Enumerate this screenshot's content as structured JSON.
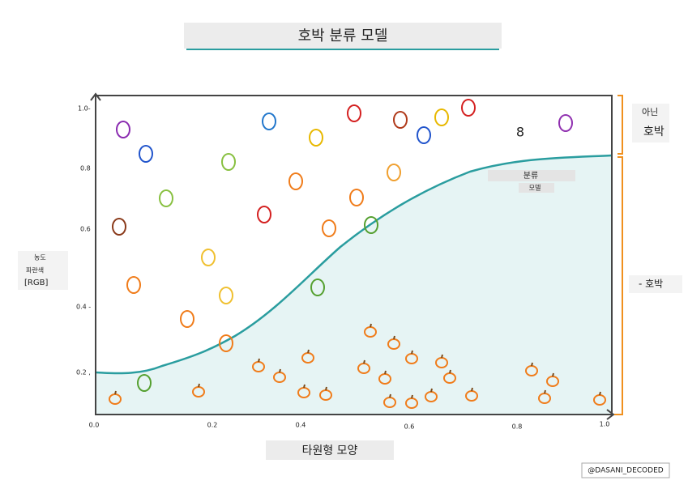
{
  "title": "호박 분류 모델",
  "y_axis_label": [
    "농도",
    "파란색",
    "[RGB]"
  ],
  "x_axis_label": "타원형 모양",
  "y_ticks": [
    "1.0-",
    "0.8",
    "0.6",
    "0.4 -",
    "0.2 ,"
  ],
  "x_ticks": [
    "0.0",
    "0.2",
    "0.4",
    "0.6",
    "0.8",
    "1.0"
  ],
  "regions": {
    "not_pumpkin": [
      "아닌",
      "호박"
    ],
    "pumpkin": "- 호박"
  },
  "model_label": [
    "분류",
    "모델"
  ],
  "glyph": "8",
  "credit": "@DASANI_DECODED"
}
